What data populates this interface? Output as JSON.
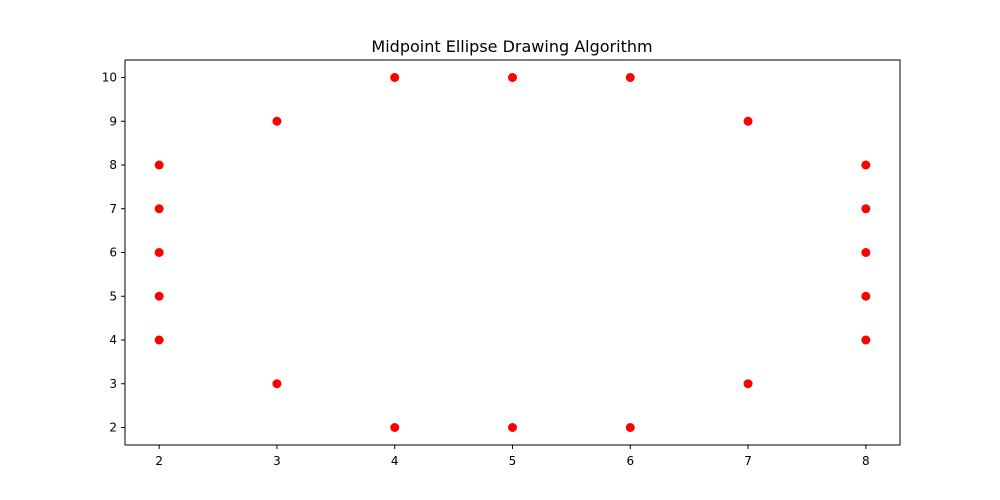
{
  "chart_data": {
    "type": "scatter",
    "title": "Midpoint Ellipse Drawing Algorithm",
    "xlabel": "",
    "ylabel": "",
    "xlim": [
      1.71,
      8.29
    ],
    "ylim": [
      1.6,
      10.4
    ],
    "x_ticks": [
      2,
      3,
      4,
      5,
      6,
      7,
      8
    ],
    "y_ticks": [
      2,
      3,
      4,
      5,
      6,
      7,
      8,
      9,
      10
    ],
    "grid": false,
    "series": [
      {
        "color": "#ff0000",
        "points": [
          [
            5,
            10
          ],
          [
            4,
            10
          ],
          [
            6,
            10
          ],
          [
            3,
            9
          ],
          [
            7,
            9
          ],
          [
            2,
            8
          ],
          [
            8,
            8
          ],
          [
            2,
            7
          ],
          [
            8,
            7
          ],
          [
            2,
            6
          ],
          [
            8,
            6
          ],
          [
            2,
            5
          ],
          [
            8,
            5
          ],
          [
            2,
            4
          ],
          [
            8,
            4
          ],
          [
            3,
            3
          ],
          [
            7,
            3
          ],
          [
            4,
            2
          ],
          [
            5,
            2
          ],
          [
            6,
            2
          ]
        ]
      }
    ]
  }
}
